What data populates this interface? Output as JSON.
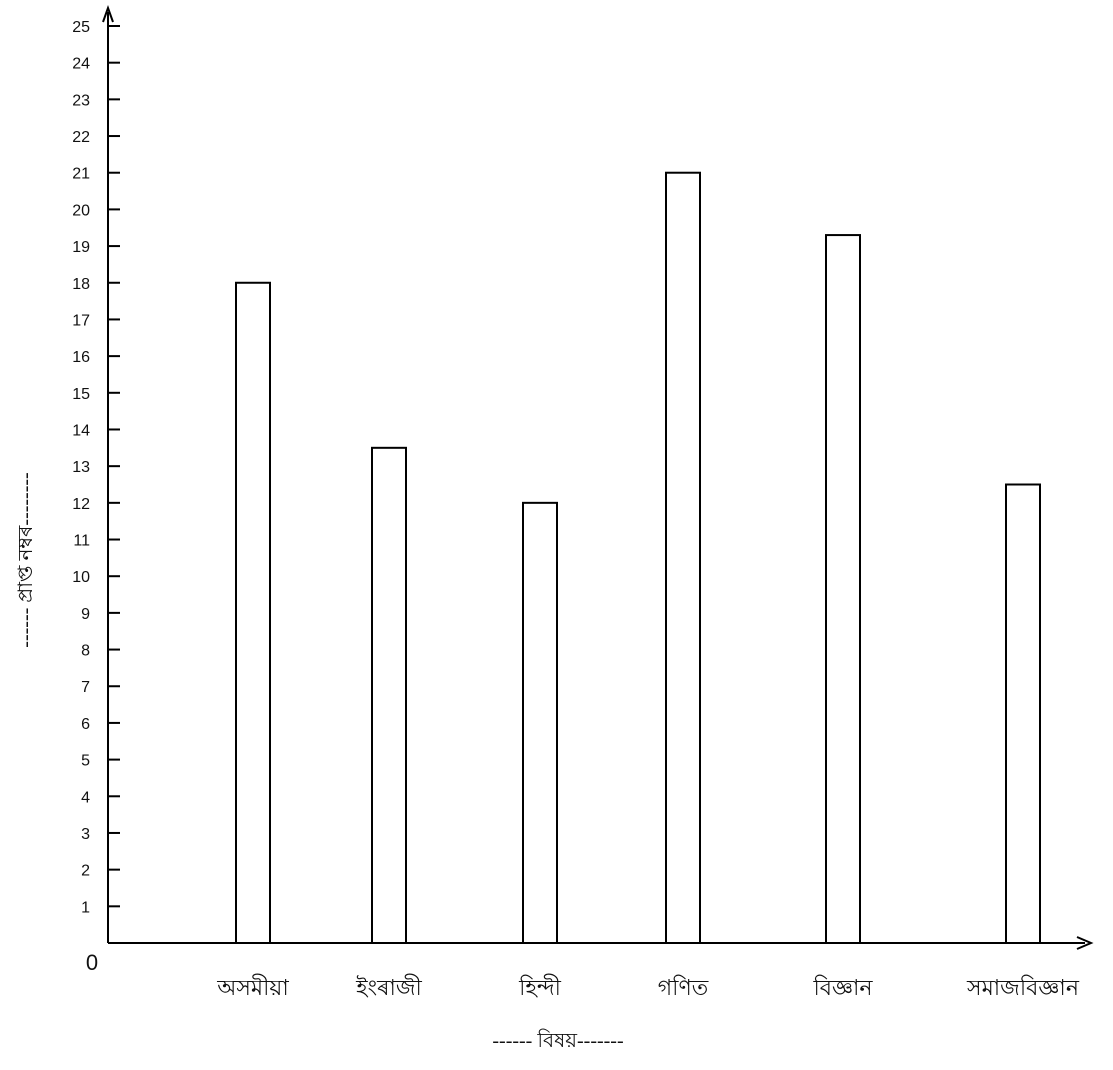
{
  "chart_data": {
    "type": "bar",
    "categories": [
      "অসমীয়া",
      "ইংৰাজী",
      "হিন্দী",
      "গণিত",
      "বিজ্ঞান",
      "সমাজবিজ্ঞান"
    ],
    "values": [
      18,
      13.5,
      12,
      21,
      19.3,
      12.5
    ],
    "xlabel": "------ বিষয়-------",
    "ylabel": "------ প্ৰাপ্ত নম্বৰ--------",
    "ylim": [
      0,
      25
    ],
    "yticks": [
      "1",
      "2",
      "3",
      "4",
      "5",
      "6",
      "7",
      "8",
      "9",
      "10",
      "11",
      "12",
      "13",
      "14",
      "15",
      "16",
      "17",
      "18",
      "19",
      "20",
      "21",
      "22",
      "23",
      "24",
      "25"
    ],
    "origin_label": "0",
    "bar_fill": "#ffffff",
    "bar_stroke": "#000000",
    "grid": false,
    "legend": "none"
  }
}
